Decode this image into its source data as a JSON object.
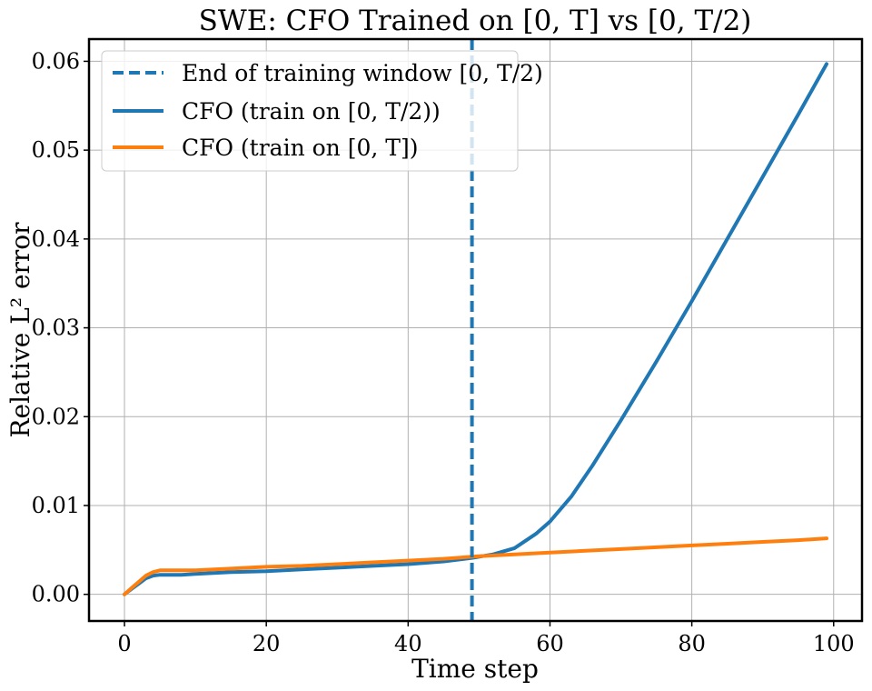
{
  "chart_data": {
    "type": "line",
    "title": "SWE: CFO Trained on [0, T] vs [0, T/2)",
    "xlabel": "Time step",
    "ylabel": "Relative L² error",
    "xlim": [
      -5,
      104
    ],
    "ylim": [
      -0.003,
      0.0625
    ],
    "xticks": [
      0,
      20,
      40,
      60,
      80,
      100
    ],
    "xtick_labels": [
      "0",
      "20",
      "40",
      "60",
      "80",
      "100"
    ],
    "yticks": [
      0.0,
      0.01,
      0.02,
      0.03,
      0.04,
      0.05,
      0.06
    ],
    "ytick_labels": [
      "0.00",
      "0.01",
      "0.02",
      "0.03",
      "0.04",
      "0.05",
      "0.06"
    ],
    "grid": true,
    "legend_position": "top-left",
    "vline": {
      "name": "End of training window [0, T/2)",
      "x": 49,
      "color": "#1f77b4",
      "style": "dashed"
    },
    "series": [
      {
        "name": "CFO (train on [0, T/2))",
        "color": "#1f77b4",
        "x": [
          0,
          1,
          2,
          3,
          4,
          5,
          6,
          8,
          10,
          15,
          20,
          25,
          30,
          35,
          40,
          45,
          49,
          52,
          55,
          58,
          60,
          63,
          66,
          70,
          75,
          80,
          85,
          90,
          95,
          99
        ],
        "y": [
          0.0,
          0.0006,
          0.0012,
          0.0018,
          0.0021,
          0.0022,
          0.0022,
          0.0022,
          0.0023,
          0.0025,
          0.0026,
          0.0028,
          0.003,
          0.0032,
          0.0034,
          0.0037,
          0.0041,
          0.0045,
          0.0052,
          0.0068,
          0.0082,
          0.011,
          0.0145,
          0.0196,
          0.0262,
          0.033,
          0.04,
          0.047,
          0.054,
          0.0597
        ]
      },
      {
        "name": "CFO (train on [0, T])",
        "color": "#ff7f0e",
        "x": [
          0,
          1,
          2,
          3,
          4,
          5,
          6,
          8,
          10,
          15,
          20,
          25,
          30,
          35,
          40,
          45,
          50,
          55,
          60,
          65,
          70,
          75,
          80,
          85,
          90,
          95,
          99
        ],
        "y": [
          0.0,
          0.0007,
          0.0014,
          0.0021,
          0.0025,
          0.0027,
          0.0027,
          0.0027,
          0.0027,
          0.0029,
          0.0031,
          0.0032,
          0.0034,
          0.0036,
          0.0038,
          0.004,
          0.0043,
          0.0045,
          0.0047,
          0.0049,
          0.0051,
          0.0053,
          0.0055,
          0.0057,
          0.0059,
          0.0061,
          0.0063
        ]
      }
    ]
  }
}
